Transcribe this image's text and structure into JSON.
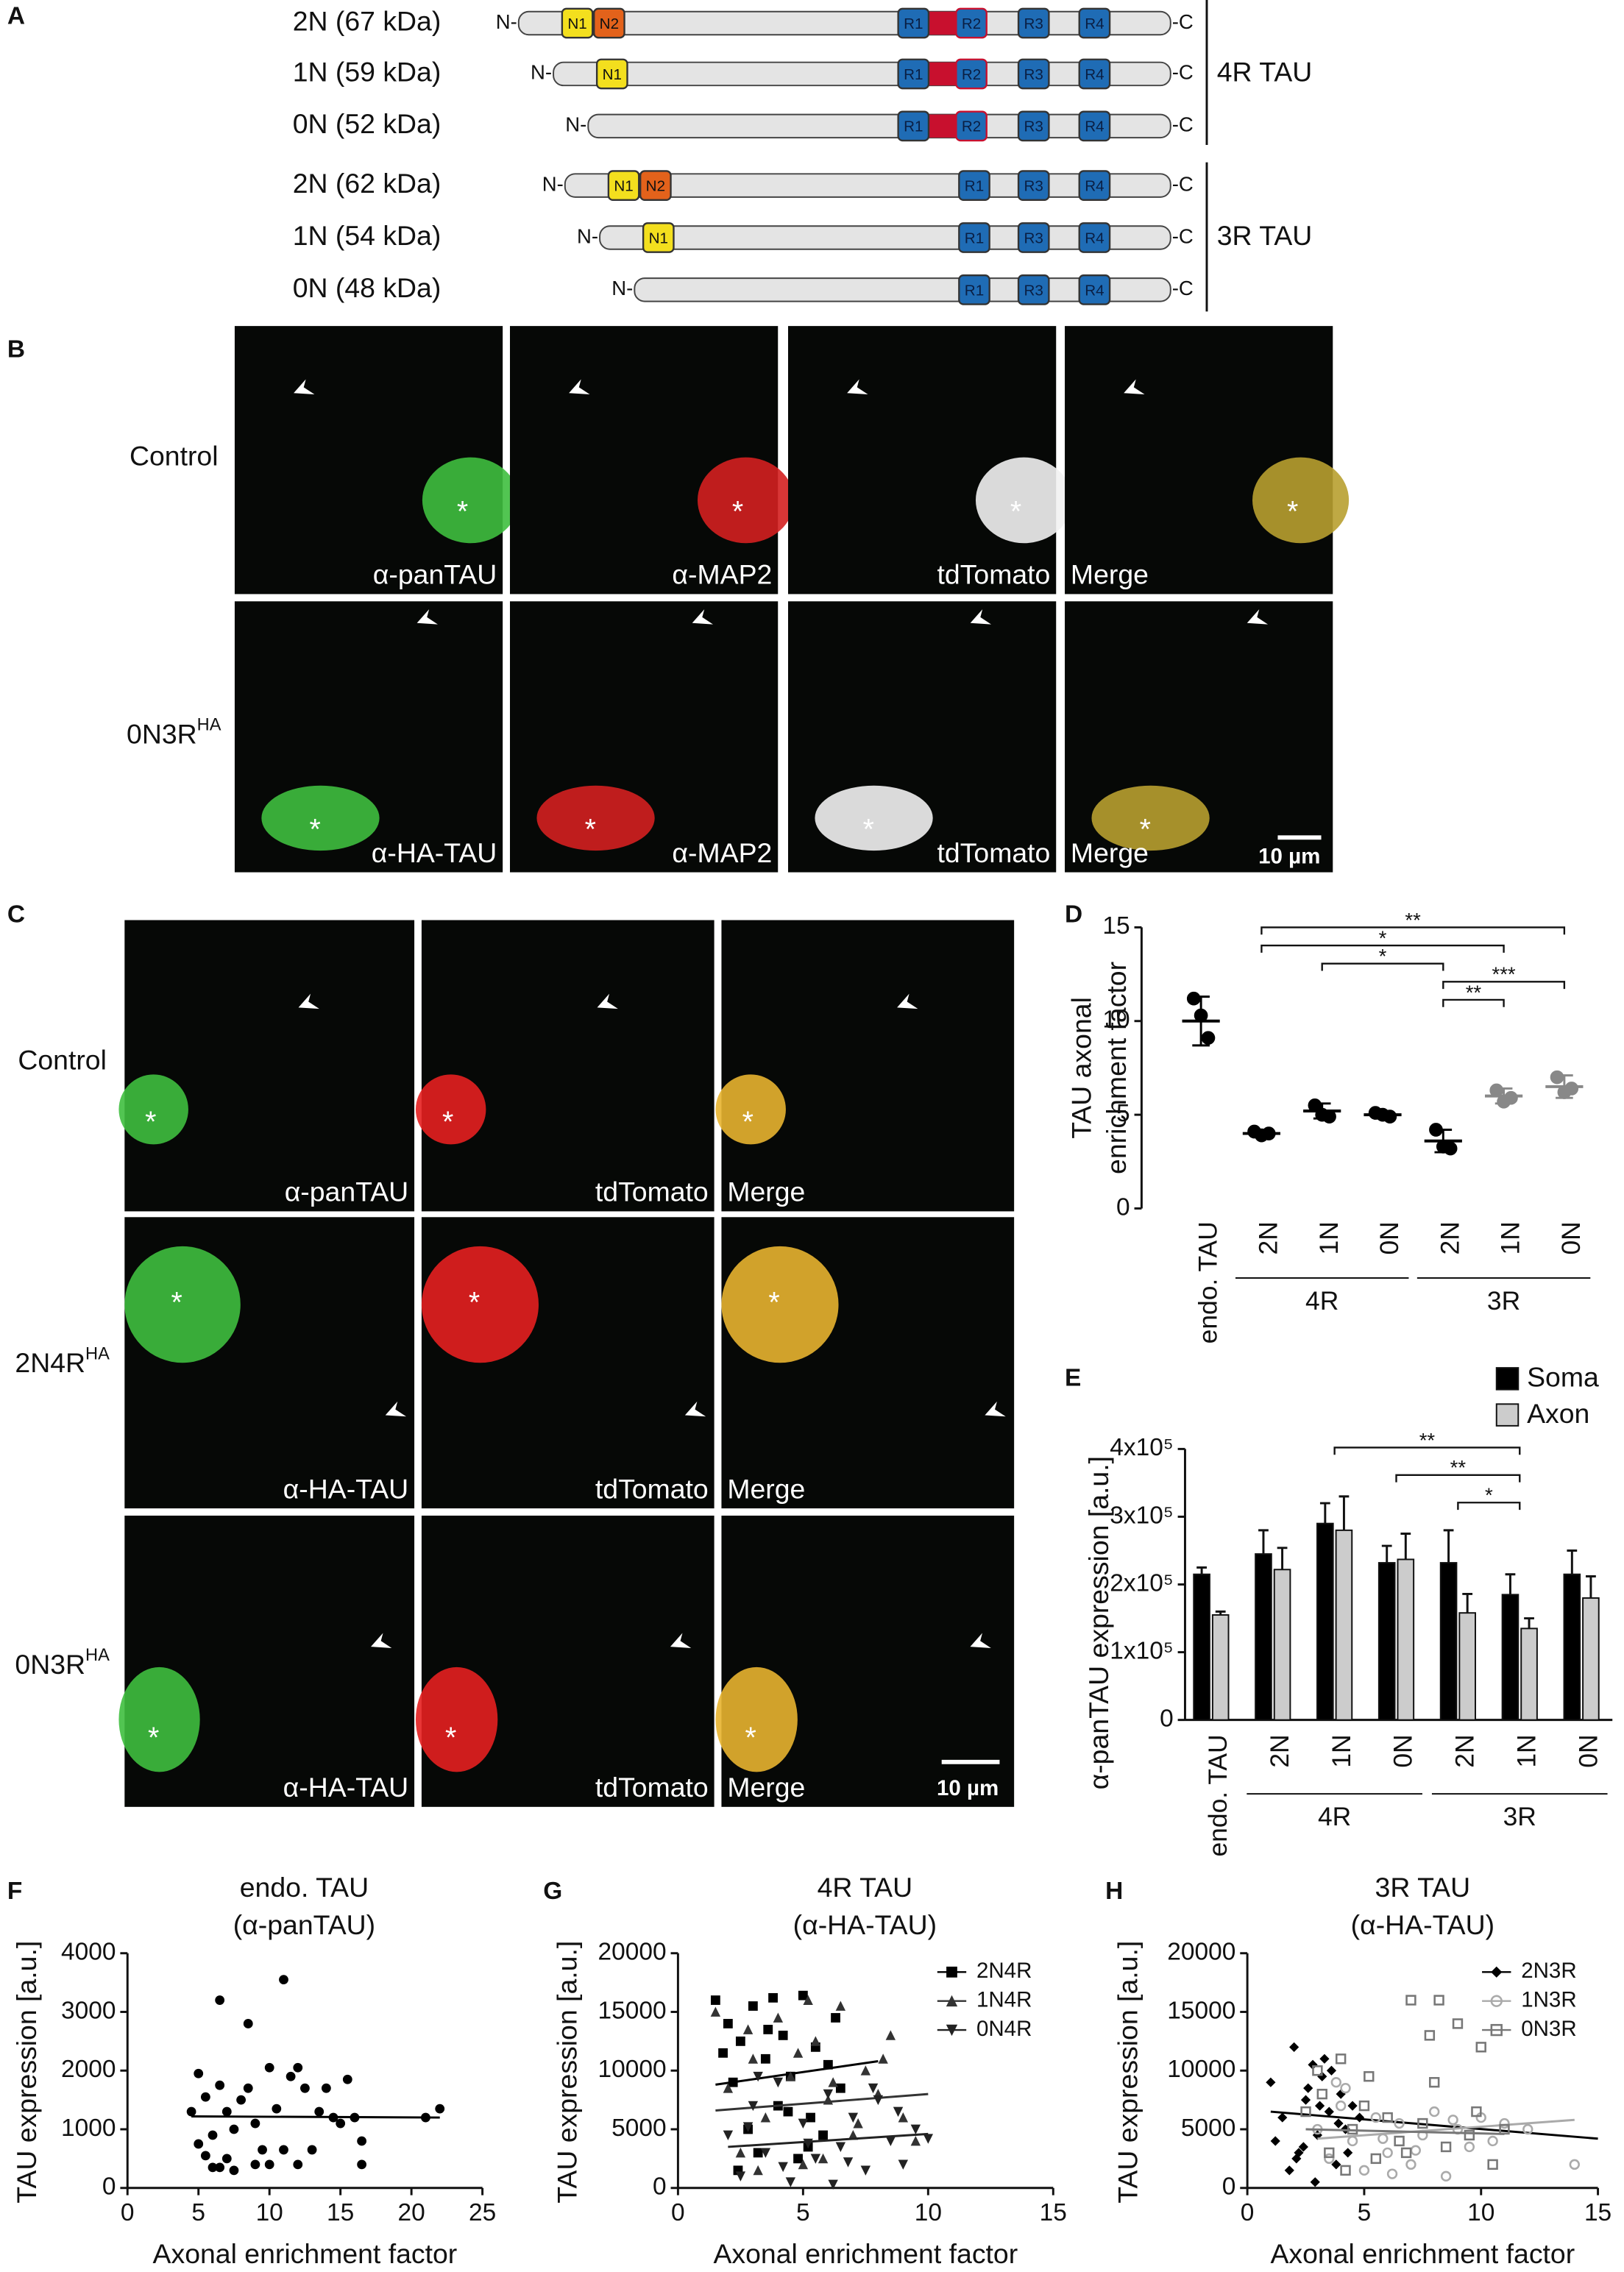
{
  "panels": [
    "A",
    "B",
    "C",
    "D",
    "E",
    "F",
    "G",
    "H"
  ],
  "schematic": {
    "n_term": "N-",
    "c_term": "-C",
    "rows": [
      {
        "label": "2N (67 kDa)",
        "domains": [
          "N1",
          "N2",
          "R1",
          "R2",
          "R3",
          "R4"
        ]
      },
      {
        "label": "1N (59 kDa)",
        "domains": [
          "N1",
          "R1",
          "R2",
          "R3",
          "R4"
        ]
      },
      {
        "label": "0N (52 kDa)",
        "domains": [
          "R1",
          "R2",
          "R3",
          "R4"
        ]
      },
      {
        "label": "2N (62 kDa)",
        "domains": [
          "N1",
          "N2",
          "R1",
          "R3",
          "R4"
        ]
      },
      {
        "label": "1N (54 kDa)",
        "domains": [
          "N1",
          "R1",
          "R3",
          "R4"
        ]
      },
      {
        "label": "0N (48 kDa)",
        "domains": [
          "R1",
          "R3",
          "R4"
        ]
      }
    ],
    "groups": [
      "4R TAU",
      "3R TAU"
    ]
  },
  "micrographs": {
    "soma_marker": "*",
    "scale_bar": "10 µm",
    "B": [
      {
        "label": "Control",
        "captions": [
          "α-panTAU",
          "α-MAP2",
          "tdTomato",
          "Merge"
        ]
      },
      {
        "label": "0N3R",
        "label_sup": "HA",
        "captions": [
          "α-HA-TAU",
          "α-MAP2",
          "tdTomato",
          "Merge"
        ]
      }
    ],
    "C": [
      {
        "label": "Control",
        "captions": [
          "α-panTAU",
          "tdTomato",
          "Merge"
        ]
      },
      {
        "label": "2N4R",
        "label_sup": "HA",
        "captions": [
          "α-HA-TAU",
          "tdTomato",
          "Merge"
        ]
      },
      {
        "label": "0N3R",
        "label_sup": "HA",
        "captions": [
          "α-HA-TAU",
          "tdTomato",
          "Merge"
        ]
      }
    ]
  },
  "chart_data": [
    {
      "type": "dot_plot",
      "ylabel": [
        "TAU axonal",
        "enrichment factor"
      ],
      "categories": [
        "endo. TAU",
        "2N",
        "1N",
        "0N",
        "2N",
        "1N",
        "0N"
      ],
      "groups": [
        {
          "label": "4R",
          "categories": [
            1,
            2,
            3
          ]
        },
        {
          "label": "3R",
          "categories": [
            4,
            5,
            6
          ]
        }
      ],
      "colors": [
        "#000",
        "#000",
        "#000",
        "#000",
        "#000",
        "#888",
        "#888"
      ],
      "points": [
        [
          11.2,
          10.3,
          9.1
        ],
        [
          4.1,
          3.9,
          4.0
        ],
        [
          5.5,
          5.0,
          4.9
        ],
        [
          5.1,
          5.0,
          4.9
        ],
        [
          4.2,
          3.3,
          3.2
        ],
        [
          6.3,
          5.7,
          5.9
        ],
        [
          7.0,
          6.2,
          6.4
        ]
      ],
      "mean": [
        10.0,
        4.0,
        5.2,
        5.0,
        3.6,
        6.0,
        6.5
      ],
      "sd": [
        1.3,
        0.2,
        0.4,
        0.2,
        0.6,
        0.4,
        0.6
      ],
      "ylim": [
        0,
        15
      ],
      "yticks": [
        0,
        5,
        10,
        15
      ],
      "comparisons": [
        {
          "from": 1,
          "to": 6,
          "label": "**"
        },
        {
          "from": 1,
          "to": 5,
          "label": "*"
        },
        {
          "from": 2,
          "to": 4,
          "label": "*"
        },
        {
          "from": 4,
          "to": 6,
          "label": "***"
        },
        {
          "from": 4,
          "to": 5,
          "label": "**"
        }
      ]
    },
    {
      "type": "bar",
      "ylabel": "α-panTAU expression [a.u.]",
      "categories": [
        "endo. TAU",
        "2N",
        "1N",
        "0N",
        "2N",
        "1N",
        "0N"
      ],
      "groups": [
        {
          "label": "4R",
          "categories": [
            1,
            2,
            3
          ]
        },
        {
          "label": "3R",
          "categories": [
            4,
            5,
            6
          ]
        }
      ],
      "series": [
        {
          "name": "Soma",
          "color": "#000000",
          "values": [
            215000,
            245000,
            290000,
            232000,
            232000,
            185000,
            215000
          ],
          "errors": [
            10000,
            35000,
            30000,
            25000,
            48000,
            30000,
            35000
          ]
        },
        {
          "name": "Axon",
          "color": "#cccccc",
          "values": [
            155000,
            222000,
            280000,
            237000,
            158000,
            135000,
            180000
          ],
          "errors": [
            5000,
            32000,
            50000,
            38000,
            28000,
            15000,
            32000
          ]
        }
      ],
      "ylim": [
        0,
        400000
      ],
      "yticks": [
        0,
        {
          "value": 100000,
          "label": "1x10⁵"
        },
        {
          "value": 200000,
          "label": "2x10⁵"
        },
        {
          "value": 300000,
          "label": "3x10⁵"
        },
        {
          "value": 400000,
          "label": "4x10⁵"
        }
      ],
      "comparisons": [
        {
          "from": 2,
          "to": 5,
          "label": "**"
        },
        {
          "from": 3,
          "to": 5,
          "label": "**"
        },
        {
          "from": 4,
          "to": 5,
          "label": "*"
        }
      ]
    },
    {
      "type": "scatter",
      "title": "endo. TAU",
      "subtitle": "(α-panTAU)",
      "xlabel": "Axonal enrichment factor",
      "ylabel": "TAU expression [a.u.]",
      "xlim": [
        0,
        25
      ],
      "xticks": [
        0,
        5,
        10,
        15,
        20,
        25
      ],
      "ylim": [
        0,
        4000
      ],
      "yticks": [
        0,
        1000,
        2000,
        3000,
        4000
      ],
      "series": [
        {
          "color": "#000000",
          "marker": "circle",
          "filled": true,
          "x": [
            5,
            5.5,
            4.5,
            5,
            5.5,
            6,
            6,
            6.5,
            6.5,
            7,
            7,
            7.5,
            7.5,
            8,
            8.5,
            8.5,
            9,
            9,
            9.5,
            10,
            10,
            10.5,
            11,
            11,
            11.5,
            12,
            12,
            12.5,
            13,
            13.5,
            14,
            14.5,
            15,
            15.5,
            16,
            16.5,
            16.5,
            21,
            22,
            6.5
          ],
          "y": [
            1950,
            1550,
            1300,
            750,
            550,
            350,
            900,
            3200,
            1750,
            1300,
            500,
            300,
            1000,
            1500,
            2800,
            1700,
            400,
            1100,
            650,
            2050,
            400,
            1350,
            3550,
            650,
            1900,
            400,
            2050,
            1700,
            650,
            1300,
            1700,
            1200,
            1100,
            1850,
            1200,
            800,
            400,
            1200,
            1350,
            350
          ],
          "fit": {
            "x": [
              4.5,
              22
            ],
            "y": [
              1220,
              1200
            ]
          }
        }
      ]
    },
    {
      "type": "scatter",
      "title": "4R TAU",
      "subtitle": "(α-HA-TAU)",
      "xlabel": "Axonal enrichment factor",
      "ylabel": "TAU expression [a.u.]",
      "xlim": [
        0,
        15
      ],
      "xticks": [
        0,
        5,
        10,
        15
      ],
      "ylim": [
        0,
        20000
      ],
      "yticks": [
        0,
        5000,
        10000,
        15000,
        20000
      ],
      "series": [
        {
          "name": "2N4R",
          "color": "#000000",
          "marker": "square",
          "filled": true,
          "x": [
            1.5,
            2,
            2.2,
            2.5,
            2.8,
            3,
            3.2,
            3.5,
            3.8,
            4,
            4.2,
            4.5,
            4.8,
            5,
            5.3,
            5.5,
            5.8,
            6,
            6.3,
            6.5,
            2.4,
            3.6,
            4.4,
            5.2,
            1.8
          ],
          "y": [
            16000,
            14000,
            9000,
            12500,
            5000,
            15500,
            3000,
            11000,
            16200,
            7000,
            13000,
            9500,
            2500,
            16400,
            6000,
            12000,
            4500,
            10500,
            14500,
            8500,
            1500,
            13500,
            6500,
            3500,
            11500
          ],
          "fit": {
            "x": [
              1.5,
              8
            ],
            "y": [
              8800,
              10800
            ]
          }
        },
        {
          "name": "1N4R",
          "color": "#333333",
          "marker": "triangle",
          "filled": true,
          "x": [
            1.5,
            2,
            2.5,
            3,
            3.5,
            4,
            4.5,
            5,
            5.5,
            6,
            6.5,
            7,
            7.5,
            8,
            8.5,
            9,
            9.5,
            3.2,
            4.8,
            6.2,
            7.2,
            2.8,
            5.8,
            8.2,
            5.2
          ],
          "y": [
            15000,
            8500,
            3000,
            11000,
            6000,
            14500,
            9500,
            2000,
            12500,
            7500,
            15500,
            4500,
            10000,
            8000,
            13000,
            6000,
            4000,
            1500,
            11500,
            9000,
            5500,
            13500,
            2500,
            11000,
            16000
          ],
          "fit": {
            "x": [
              1.5,
              10
            ],
            "y": [
              6600,
              8000
            ]
          }
        },
        {
          "name": "0N4R",
          "color": "#222222",
          "marker": "tri-down",
          "filled": true,
          "x": [
            2,
            2.5,
            3,
            3.5,
            4,
            4.5,
            5,
            5.5,
            6,
            6.5,
            7,
            7.5,
            8,
            8.5,
            9,
            9.5,
            10,
            3.2,
            4.2,
            5.2,
            6.8,
            7.8,
            8.8,
            2.8,
            6.2
          ],
          "y": [
            4500,
            1000,
            7000,
            3000,
            9000,
            500,
            5500,
            2500,
            8000,
            3500,
            6000,
            1500,
            7500,
            4000,
            2000,
            5000,
            4200,
            9500,
            1800,
            3800,
            2200,
            8500,
            6500,
            5200,
            300
          ],
          "fit": {
            "x": [
              2,
              10
            ],
            "y": [
              3500,
              4600
            ]
          }
        }
      ]
    },
    {
      "type": "scatter",
      "title": "3R TAU",
      "subtitle": "(α-HA-TAU)",
      "xlabel": "Axonal enrichment factor",
      "ylabel": "TAU expression [a.u.]",
      "xlim": [
        0,
        15
      ],
      "xticks": [
        0,
        5,
        10,
        15
      ],
      "ylim": [
        0,
        20000
      ],
      "yticks": [
        0,
        5000,
        10000,
        15000,
        20000
      ],
      "series": [
        {
          "name": "2N3R",
          "color": "#000000",
          "marker": "diamond",
          "filled": true,
          "x": [
            1,
            1.5,
            2,
            2.2,
            2.5,
            2.8,
            3,
            3.2,
            3.5,
            3.8,
            4,
            4.2,
            4.5,
            1.8,
            2.4,
            3.3,
            3.9,
            2.6,
            1.2,
            4.8,
            3.6,
            2.1,
            2.9,
            4.3,
            3.1
          ],
          "y": [
            9000,
            6000,
            12000,
            3000,
            7500,
            10500,
            4500,
            9500,
            6500,
            2000,
            8000,
            5000,
            7000,
            1500,
            3500,
            11000,
            5500,
            8500,
            4000,
            6000,
            10000,
            2500,
            500,
            3000,
            7000
          ],
          "fit": {
            "x": [
              1,
              15
            ],
            "y": [
              6500,
              4200
            ]
          }
        },
        {
          "name": "1N3R",
          "color": "#aaaaaa",
          "marker": "circle",
          "filled": false,
          "x": [
            3,
            3.5,
            4,
            4.5,
            5,
            5.5,
            6,
            6.5,
            7,
            7.5,
            8,
            8.5,
            9,
            9.5,
            10,
            10.5,
            11,
            12,
            14,
            4.2,
            5.8,
            7.2,
            8.8,
            6.2,
            3.8
          ],
          "y": [
            5000,
            2500,
            7000,
            4000,
            1500,
            6000,
            3000,
            5500,
            2000,
            4500,
            6500,
            1000,
            5000,
            3500,
            6000,
            4000,
            5500,
            5000,
            2000,
            8500,
            4200,
            3200,
            5800,
            1200,
            9000
          ],
          "fit": {
            "x": [
              3,
              14
            ],
            "y": [
              4200,
              5800
            ]
          }
        },
        {
          "name": "0N3R",
          "color": "#777777",
          "marker": "square",
          "filled": false,
          "x": [
            2.5,
            3,
            3.5,
            4,
            4.5,
            5,
            5.5,
            6,
            6.5,
            7,
            7.5,
            8,
            8.5,
            9,
            9.5,
            10,
            10.5,
            11,
            3.2,
            4.2,
            5.2,
            6.8,
            8.2,
            9.8,
            7.8
          ],
          "y": [
            6500,
            10000,
            3000,
            11000,
            5000,
            7000,
            2500,
            6000,
            4000,
            16000,
            5500,
            9000,
            3500,
            14000,
            4500,
            12000,
            2000,
            5000,
            8000,
            1500,
            9500,
            3000,
            16000,
            6500,
            13000
          ],
          "fit": {
            "x": [
              2.5,
              11
            ],
            "y": [
              5000,
              4600
            ]
          }
        }
      ]
    }
  ]
}
